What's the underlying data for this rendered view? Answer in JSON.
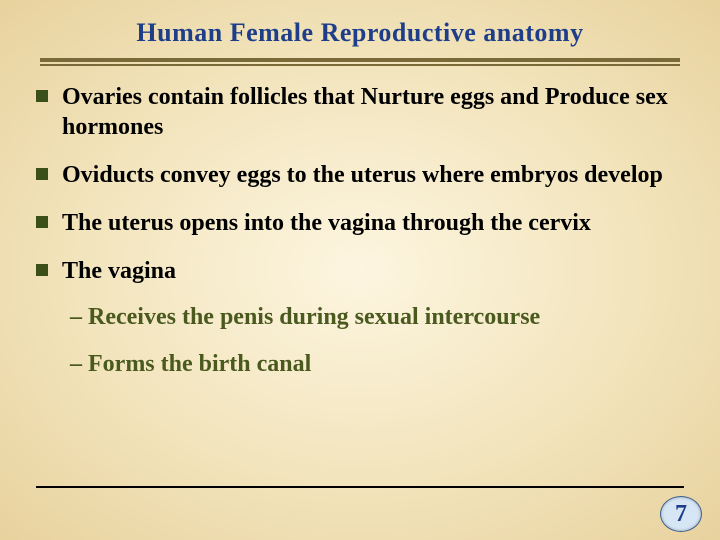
{
  "colors": {
    "title_text": "#1f3e8a",
    "rule_top": "#7a6a3a",
    "bullet_marker": "#3a4f1a",
    "body_text": "#000000",
    "sub_text": "#4a5a1f",
    "footer_rule": "#000000",
    "page_bg": "#d7e6f5",
    "page_border": "#3b5f8f",
    "page_text": "#1f3e8a"
  },
  "fontsizes": {
    "title": 26,
    "body": 24,
    "sub": 24,
    "pagenum": 24
  },
  "title": "Human Female Reproductive anatomy",
  "bullets": [
    {
      "text": "Ovaries contain follicles that Nurture eggs  and Produce sex hormones"
    },
    {
      "text": "Oviducts convey eggs to the uterus where embryos develop"
    },
    {
      "text": "The uterus opens into the vagina through the cervix"
    },
    {
      "text": "The vagina"
    }
  ],
  "subitems": [
    {
      "text": "– Receives the penis during sexual intercourse"
    },
    {
      "text": "– Forms the birth canal"
    }
  ],
  "page_number": "7"
}
